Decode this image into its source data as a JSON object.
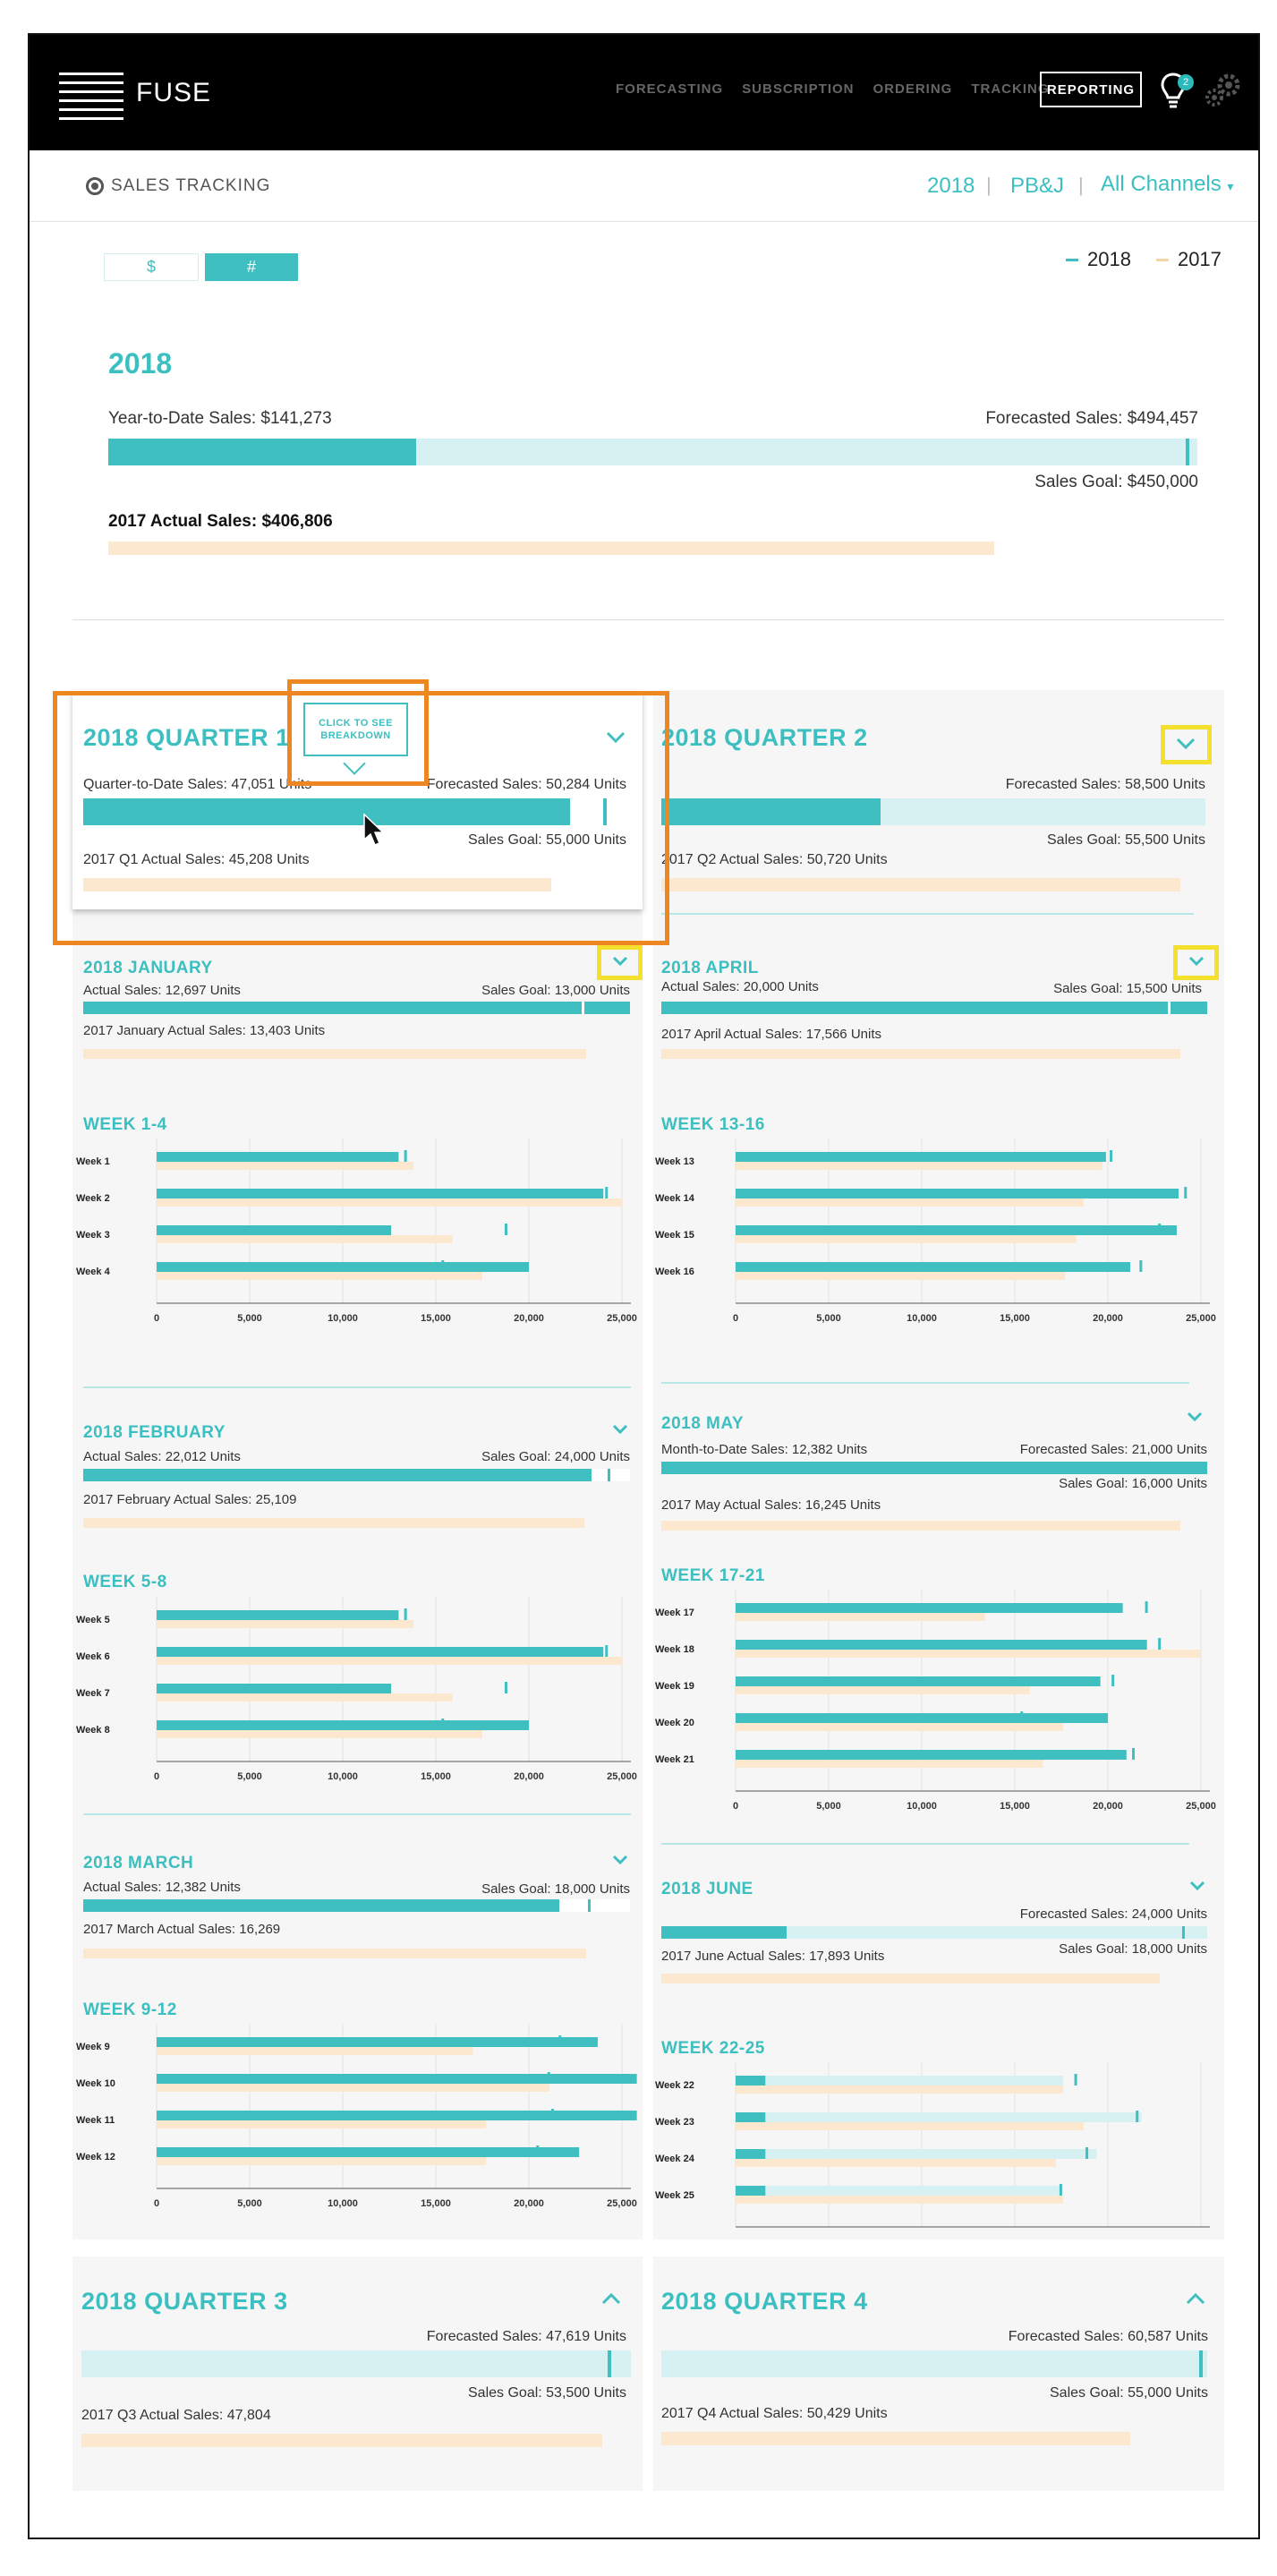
{
  "header": {
    "logo_text": "FUSE",
    "logo_letter": "F",
    "nav": [
      "FORECASTING",
      "SUBSCRIPTION",
      "ORDERING",
      "TRACKING"
    ],
    "nav_active": "REPORTING",
    "notification_count": "2",
    "icons": [
      "lightbulb-icon",
      "gears-icon"
    ]
  },
  "subheader": {
    "section_title": "SALES TRACKING",
    "year": "2018",
    "product": "PB&J",
    "channel": "All Channels",
    "separator": "|"
  },
  "toggle": {
    "dollar": "$",
    "units": "#",
    "active": "#"
  },
  "legend": {
    "current": "2018",
    "previous": "2017",
    "current_color": "#40bfc1",
    "previous_color": "#fbe8cf"
  },
  "colors": {
    "accent": "#40bfc1",
    "light": "#d7f1f2",
    "prev": "#fbe8cf",
    "highlight_orange": "#ee8621",
    "highlight_yellow": "#f5e02d"
  },
  "year_summary": {
    "title": "2018",
    "ytd_label": "Year-to-Date Sales: $141,273",
    "forecast_label": "Forecasted Sales: $494,457",
    "goal_label": "Sales Goal: $450,000",
    "prev_label": "2017 Actual Sales: $406,806",
    "ytd_value": 141273,
    "forecast_value": 494457,
    "goal_value": 450000,
    "prev_value": 406806,
    "scale_max": 500000
  },
  "tooltip": "CLICK TO SEE BREAKDOWN",
  "quarters": {
    "q1": {
      "title": "2018 QUARTER 1",
      "actual_label": "Quarter-to-Date Sales: 47,051 Units",
      "forecast_label": "Forecasted Sales: 50,284 Units",
      "goal_label": "Sales Goal: 55,000 Units",
      "prev_label": "2017 Q1 Actual Sales: 45,208 Units",
      "actual": 47051,
      "forecast": 50284,
      "goal": 55000,
      "prev": 45208,
      "max": 52500
    },
    "q2": {
      "title": "2018 QUARTER 2",
      "forecast_label": "Forecasted Sales: 58,500 Units",
      "goal_label": "Sales Goal: 55,500 Units",
      "prev_label": "2017 Q2 Actual Sales: 50,720 Units",
      "actual": 23800,
      "forecast": 58500,
      "goal": 55500,
      "prev": 50720,
      "max": 59000
    },
    "q3": {
      "title": "2018 QUARTER 3",
      "forecast_label": "Forecasted Sales: 47,619 Units",
      "goal_label": "Sales Goal: 53,500 Units",
      "prev_label": "2017 Q3 Actual Sales: 47,804",
      "forecast": 47619,
      "goal": 53500,
      "prev": 47804,
      "max": 54000
    },
    "q4": {
      "title": "2018 QUARTER 4",
      "forecast_label": "Forecasted Sales: 60,587 Units",
      "goal_label": "Sales Goal: 55,000 Units",
      "prev_label": "2017 Q4 Actual Sales: 50,429 Units",
      "forecast": 60587,
      "goal": 55000,
      "prev": 50429,
      "max": 61000
    }
  },
  "months": {
    "jan": {
      "title": "2018 JANUARY",
      "actual_label": "Actual Sales: 12,697 Units",
      "goal_label": "Sales Goal: 13,000 Units",
      "prev_label": "2017 January Actual Sales: 13,403 Units"
    },
    "feb": {
      "title": "2018 FEBRUARY",
      "actual_label": "Actual Sales: 22,012 Units",
      "goal_label": "Sales Goal: 24,000 Units",
      "prev_label": "2017 February Actual Sales: 25,109"
    },
    "mar": {
      "title": "2018 MARCH",
      "actual_label": "Actual Sales: 12,382 Units",
      "goal_label": "Sales Goal: 18,000 Units",
      "prev_label": "2017 March Actual Sales: 16,269"
    },
    "apr": {
      "title": "2018 APRIL",
      "actual_label": "Actual Sales: 20,000 Units",
      "goal_label": "Sales Goal: 15,500 Units",
      "prev_label": "2017 April Actual Sales: 17,566 Units"
    },
    "may": {
      "title": "2018 MAY",
      "actual_label": "Month-to-Date Sales: 12,382 Units",
      "forecast_label": "Forecasted Sales: 21,000 Units",
      "goal_label": "Sales Goal: 16,000 Units",
      "prev_label": "2017 May Actual Sales: 16,245 Units"
    },
    "jun": {
      "title": "2018 JUNE",
      "forecast_label": "Forecasted Sales: 24,000 Units",
      "goal_label": "Sales Goal: 18,000 Units",
      "prev_label": "2017 June Actual Sales: 17,893 Units"
    }
  },
  "chart_data": [
    {
      "type": "bar",
      "title": "WEEK 1-4",
      "orientation": "horizontal",
      "categories": [
        "Week 1",
        "Week 2",
        "Week 3",
        "Week 4"
      ],
      "series": [
        {
          "name": "2018",
          "values": [
            13000,
            24000,
            12600,
            20000
          ]
        },
        {
          "name": "2017",
          "values": [
            13800,
            25000,
            15900,
            17500
          ]
        }
      ],
      "goal_markers": [
        13300,
        24100,
        18700,
        15300
      ],
      "xticks": [
        "0",
        "5,000",
        "10,000",
        "15,000",
        "20,000",
        "25,000"
      ],
      "xlim": [
        0,
        25000
      ]
    },
    {
      "type": "bar",
      "title": "WEEK 5-8",
      "orientation": "horizontal",
      "categories": [
        "Week 5",
        "Week 6",
        "Week 7",
        "Week 8"
      ],
      "series": [
        {
          "name": "2018",
          "values": [
            13000,
            24000,
            12600,
            20000
          ]
        },
        {
          "name": "2017",
          "values": [
            13800,
            25000,
            15900,
            17500
          ]
        }
      ],
      "goal_markers": [
        13300,
        24100,
        18700,
        15300
      ],
      "xticks": [
        "0",
        "5,000",
        "10,000",
        "15,000",
        "20,000",
        "25,000"
      ],
      "xlim": [
        0,
        25000
      ]
    },
    {
      "type": "bar",
      "title": "WEEK 9-12",
      "orientation": "horizontal",
      "categories": [
        "Week 9",
        "Week 10",
        "Week 11",
        "Week 12"
      ],
      "series": [
        {
          "name": "2018",
          "values": [
            23700,
            25800,
            25800,
            22700
          ]
        },
        {
          "name": "2017",
          "values": [
            17000,
            21100,
            17700,
            17700
          ]
        }
      ],
      "goal_markers": [
        21600,
        21000,
        21200,
        20400
      ],
      "xticks": [
        "0",
        "5,000",
        "10,000",
        "15,000",
        "20,000",
        "25,000"
      ],
      "xlim": [
        0,
        25000
      ]
    },
    {
      "type": "bar",
      "title": "WEEK 13-16",
      "orientation": "horizontal",
      "categories": [
        "Week 13",
        "Week 14",
        "Week 15",
        "Week 16"
      ],
      "series": [
        {
          "name": "2018",
          "values": [
            19900,
            23800,
            23700,
            21200
          ]
        },
        {
          "name": "2017",
          "values": [
            19700,
            18700,
            18300,
            17700
          ]
        }
      ],
      "goal_markers": [
        20100,
        24100,
        22700,
        21700
      ],
      "xticks": [
        "0",
        "5,000",
        "10,000",
        "15,000",
        "20,000",
        "25,000"
      ],
      "xlim": [
        0,
        25000
      ]
    },
    {
      "type": "bar",
      "title": "WEEK 17-21",
      "orientation": "horizontal",
      "categories": [
        "Week 17",
        "Week 18",
        "Week 19",
        "Week 20",
        "Week 21"
      ],
      "series": [
        {
          "name": "2018",
          "values": [
            20800,
            22100,
            19600,
            20000,
            21000
          ]
        },
        {
          "name": "2017",
          "values": [
            13400,
            25000,
            15800,
            17600,
            16500
          ]
        }
      ],
      "goal_markers": [
        22000,
        22700,
        20200,
        15300,
        21300
      ],
      "xticks": [
        "0",
        "5,000",
        "10,000",
        "15,000",
        "20,000",
        "25,000"
      ],
      "xlim": [
        0,
        25000
      ]
    },
    {
      "type": "bar",
      "title": "WEEK 22-25",
      "orientation": "horizontal",
      "categories": [
        "Week 22",
        "Week 23",
        "Week 24",
        "Week 25"
      ],
      "series": [
        {
          "name": "2018",
          "values": [
            1600,
            1600,
            1600,
            1600
          ]
        },
        {
          "name": "2017",
          "values": [
            17600,
            18700,
            17200,
            17600
          ]
        }
      ],
      "forecast": [
        17600,
        21800,
        19400,
        17400
      ],
      "goal_markers": [
        18200,
        21500,
        18800,
        17400
      ],
      "xticks": [
        "0",
        "5,000",
        "10,000",
        "15,000",
        "20,000",
        "25,000"
      ],
      "xlim": [
        0,
        25000
      ]
    }
  ]
}
